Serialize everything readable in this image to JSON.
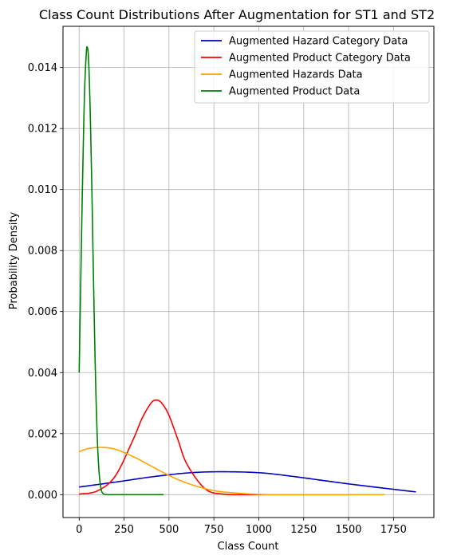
{
  "chart_data": {
    "type": "line",
    "title": "Class Count Distributions After Augmentation for ST1 and ST2",
    "xlabel": "Class Count",
    "ylabel": "Probability Density",
    "xlim": [
      -90,
      1975
    ],
    "ylim": [
      -0.00075,
      0.01535
    ],
    "xticks": [
      0,
      250,
      500,
      750,
      1000,
      1250,
      1500,
      1750
    ],
    "xtick_labels": [
      "0",
      "250",
      "500",
      "750",
      "1000",
      "1250",
      "1500",
      "1750"
    ],
    "yticks": [
      0.0,
      0.002,
      0.004,
      0.006,
      0.008,
      0.01,
      0.012,
      0.014
    ],
    "ytick_labels": [
      "0.000",
      "0.002",
      "0.004",
      "0.006",
      "0.008",
      "0.010",
      "0.012",
      "0.014"
    ],
    "grid": true,
    "legend_position": "top-right",
    "series": [
      {
        "name": "Augmented Hazard Category Data",
        "color": "#0000bf",
        "x": [
          0,
          200,
          400,
          600,
          775,
          1000,
          1200,
          1400,
          1600,
          1875
        ],
        "y": [
          0.00025,
          0.00041,
          0.00058,
          0.00071,
          0.00075,
          0.00072,
          0.00059,
          0.00043,
          0.00028,
          9e-05
        ]
      },
      {
        "name": "Augmented Product Category Data",
        "color": "#ff0000",
        "x": [
          0,
          100,
          200,
          300,
          350,
          400,
          430,
          460,
          500,
          550,
          600,
          700,
          800,
          1000,
          1500
        ],
        "y": [
          2e-05,
          0.00012,
          0.0006,
          0.0018,
          0.0025,
          0.003,
          0.0031,
          0.003,
          0.0026,
          0.0018,
          0.001,
          0.0002,
          2e-05,
          0.0,
          0.0
        ]
      },
      {
        "name": "Augmented Hazards Data",
        "color": "#ffa500",
        "x": [
          0,
          50,
          120,
          200,
          300,
          400,
          500,
          600,
          700,
          800,
          1000,
          1200,
          1500,
          1700
        ],
        "y": [
          0.00141,
          0.00151,
          0.00155,
          0.00149,
          0.00125,
          0.00094,
          0.00063,
          0.00038,
          0.0002,
          9e-05,
          1e-05,
          0.0,
          0.0,
          0.0
        ]
      },
      {
        "name": "Augmented Product Data",
        "color": "#008000",
        "x": [
          0,
          10,
          20,
          30,
          40,
          46,
          52,
          60,
          70,
          80,
          90,
          100,
          110,
          120,
          130,
          150,
          200,
          300,
          470
        ],
        "y": [
          0.004,
          0.0074,
          0.0106,
          0.0132,
          0.0145,
          0.01465,
          0.0143,
          0.0129,
          0.0102,
          0.007,
          0.0041,
          0.002,
          0.0008,
          0.00025,
          6e-05,
          0.0,
          0.0,
          0.0,
          0.0
        ]
      }
    ]
  }
}
